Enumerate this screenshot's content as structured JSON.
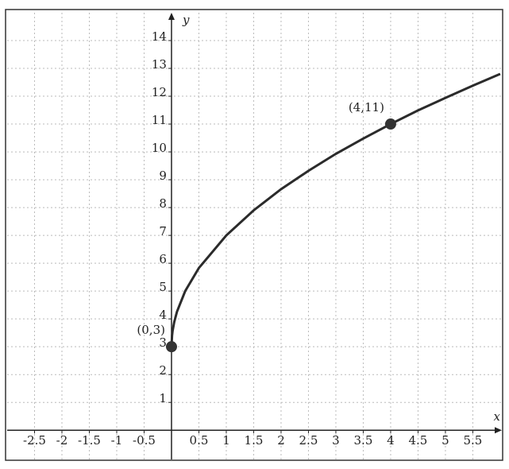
{
  "chart_data": {
    "type": "line",
    "x_label": "x",
    "y_label": "y",
    "x": [
      0,
      0.01,
      0.02,
      0.05,
      0.1,
      0.25,
      0.5,
      1,
      1.5,
      2,
      2.5,
      3,
      3.5,
      4,
      4.5,
      5,
      5.5,
      6
    ],
    "series": [
      {
        "color": "#2b2b2b",
        "values": [
          3,
          3.4,
          3.57,
          3.89,
          4.26,
          5,
          5.83,
          7,
          7.9,
          8.66,
          9.32,
          9.93,
          10.48,
          11,
          11.49,
          11.94,
          12.38,
          12.8
        ]
      }
    ],
    "points": [
      {
        "label": "(0,3)",
        "x": 0,
        "y": 3
      },
      {
        "label": "(4,11)",
        "x": 4,
        "y": 11
      }
    ],
    "xlim": [
      -3,
      6.03
    ],
    "ylim": [
      -1.05,
      15
    ],
    "xticks": [
      -2.5,
      -2,
      -1.5,
      -1,
      -0.5,
      0.5,
      1,
      1.5,
      2,
      2.5,
      3,
      3.5,
      4,
      4.5,
      5,
      5.5
    ],
    "yticks": [
      1,
      2,
      3,
      4,
      5,
      6,
      7,
      8,
      9,
      10,
      11,
      12,
      13,
      14
    ],
    "grid": true
  }
}
